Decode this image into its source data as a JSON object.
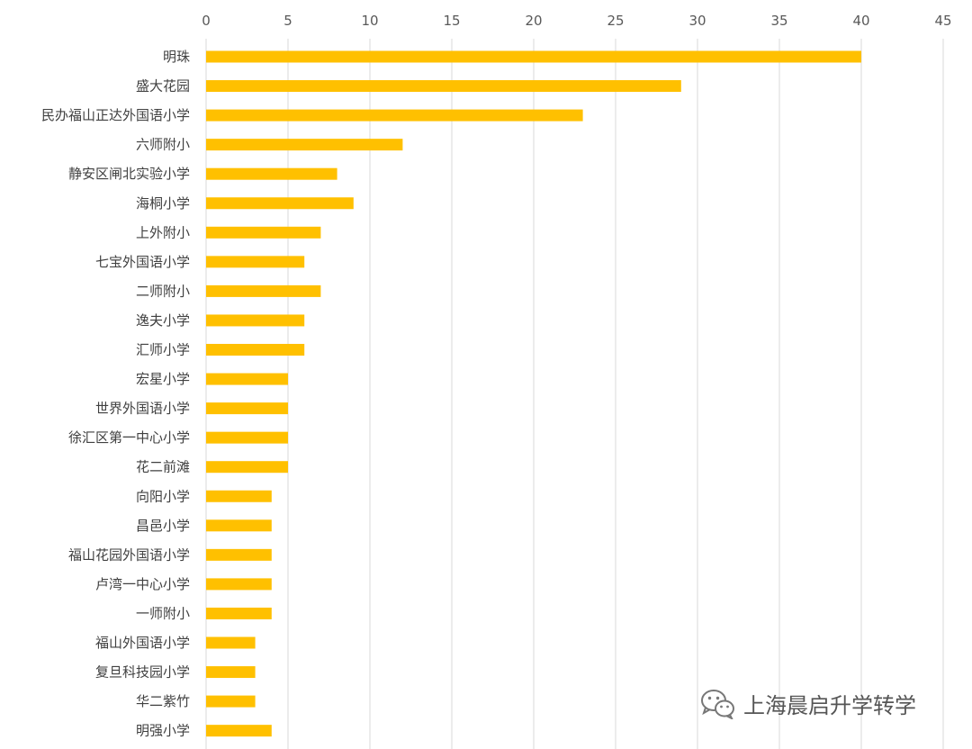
{
  "chart_data": {
    "type": "bar",
    "orientation": "horizontal",
    "title": "",
    "xlabel": "",
    "ylabel": "",
    "xlim": [
      0,
      45
    ],
    "x_ticks": [
      0,
      5,
      10,
      15,
      20,
      25,
      30,
      35,
      40,
      45
    ],
    "x_axis_position": "top",
    "grid": true,
    "legend": "none",
    "bar_color": "#ffc000",
    "categories": [
      "明珠",
      "盛大花园",
      "民办福山正达外国语小学",
      "六师附小",
      "静安区闸北实验小学",
      "海桐小学",
      "上外附小",
      "七宝外国语小学",
      "二师附小",
      "逸夫小学",
      "汇师小学",
      "宏星小学",
      "世界外国语小学",
      "徐汇区第一中心小学",
      "花二前滩",
      "向阳小学",
      "昌邑小学",
      "福山花园外国语小学",
      "卢湾一中心小学",
      "一师附小",
      "福山外国语小学",
      "复旦科技园小学",
      "华二紫竹",
      "明强小学"
    ],
    "values": [
      40,
      29,
      23,
      12,
      8,
      9,
      7,
      6,
      7,
      6,
      6,
      5,
      5,
      5,
      5,
      4,
      4,
      4,
      4,
      4,
      3,
      3,
      3,
      4
    ]
  },
  "watermark": {
    "text": "上海晨启升学转学",
    "icon": "wechat-icon"
  }
}
